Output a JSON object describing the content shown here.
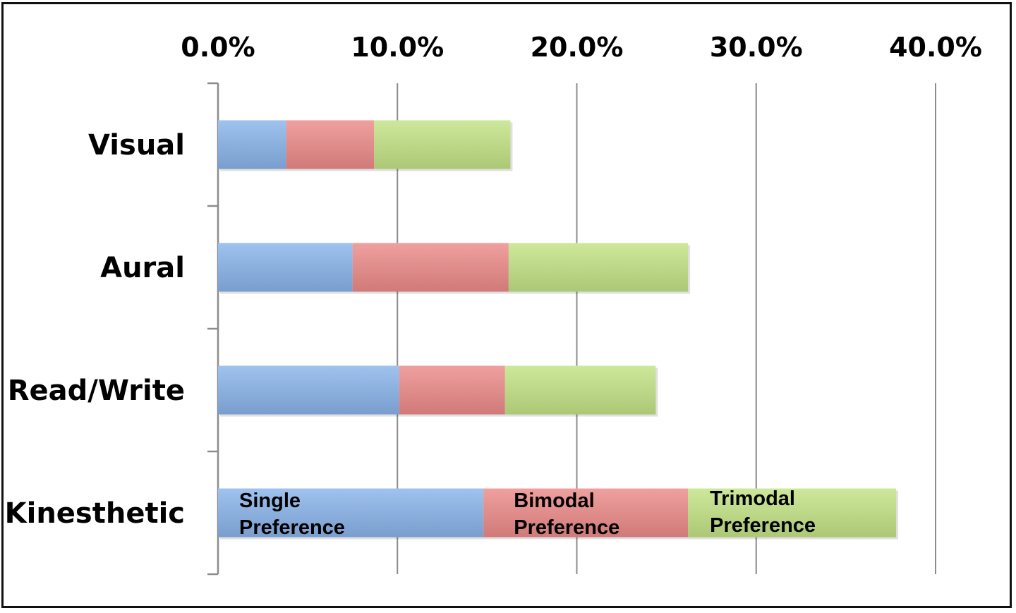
{
  "chart_data": {
    "type": "bar",
    "orientation": "horizontal",
    "stacked": true,
    "categories": [
      "Visual",
      "Aural",
      "Read/Write",
      "Kinesthetic"
    ],
    "series": [
      {
        "name": "Single Preference",
        "label_lines": [
          "Single",
          "Preference"
        ],
        "values": [
          3.8,
          7.5,
          10.1,
          14.8
        ],
        "color": "#8ab4ea"
      },
      {
        "name": "Bimodal Preference",
        "label_lines": [
          "Bimodal",
          "Preference"
        ],
        "values": [
          4.9,
          8.7,
          5.9,
          11.4
        ],
        "color": "#ec8b89"
      },
      {
        "name": "Trimodal Preference",
        "label_lines": [
          "Trimodal",
          "Preference"
        ],
        "values": [
          7.6,
          10.0,
          8.4,
          11.6
        ],
        "color": "#c3e385"
      }
    ],
    "xlim": [
      0,
      40
    ],
    "xticks": [
      0,
      10,
      20,
      30,
      40
    ],
    "xtick_labels": [
      "0.0%",
      "10.0%",
      "20.0%",
      "30.0%",
      "40.0%"
    ],
    "x_axis_position": "top",
    "grid": true,
    "title": "",
    "xlabel": "",
    "ylabel": ""
  }
}
